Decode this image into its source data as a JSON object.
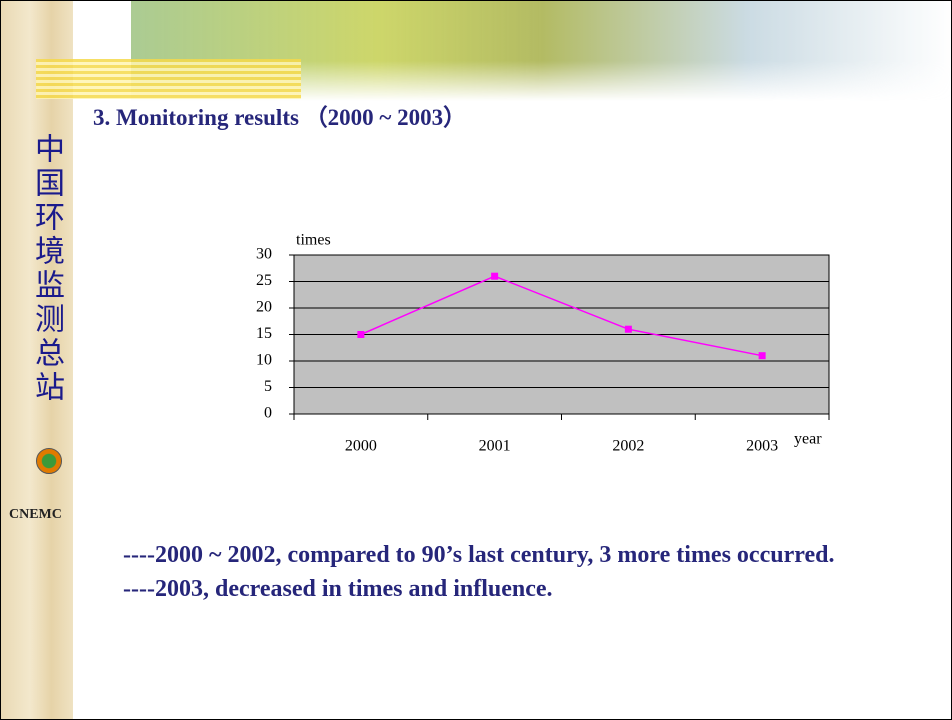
{
  "sidebar": {
    "title": "中国环境监测总站",
    "logo_text": "CNEMC"
  },
  "header": {
    "title": "3. Monitoring results （2000 ~ 2003）"
  },
  "chart_data": {
    "type": "line",
    "categories": [
      "2000",
      "2001",
      "2002",
      "2003"
    ],
    "series": [
      {
        "name": "times",
        "color": "#ff00ff",
        "values": [
          15,
          26,
          16,
          11
        ]
      }
    ],
    "y_label": "times",
    "x_label": "year",
    "ylim": [
      0,
      30
    ],
    "yticks": [
      0,
      5,
      10,
      15,
      20,
      25,
      30
    ],
    "grid": true,
    "plot_background": "#c0c0c0"
  },
  "bullets": [
    "----2000 ~ 2002, compared to 90’s last century, 3 more times occurred.",
    "----2003, decreased in times and influence."
  ]
}
